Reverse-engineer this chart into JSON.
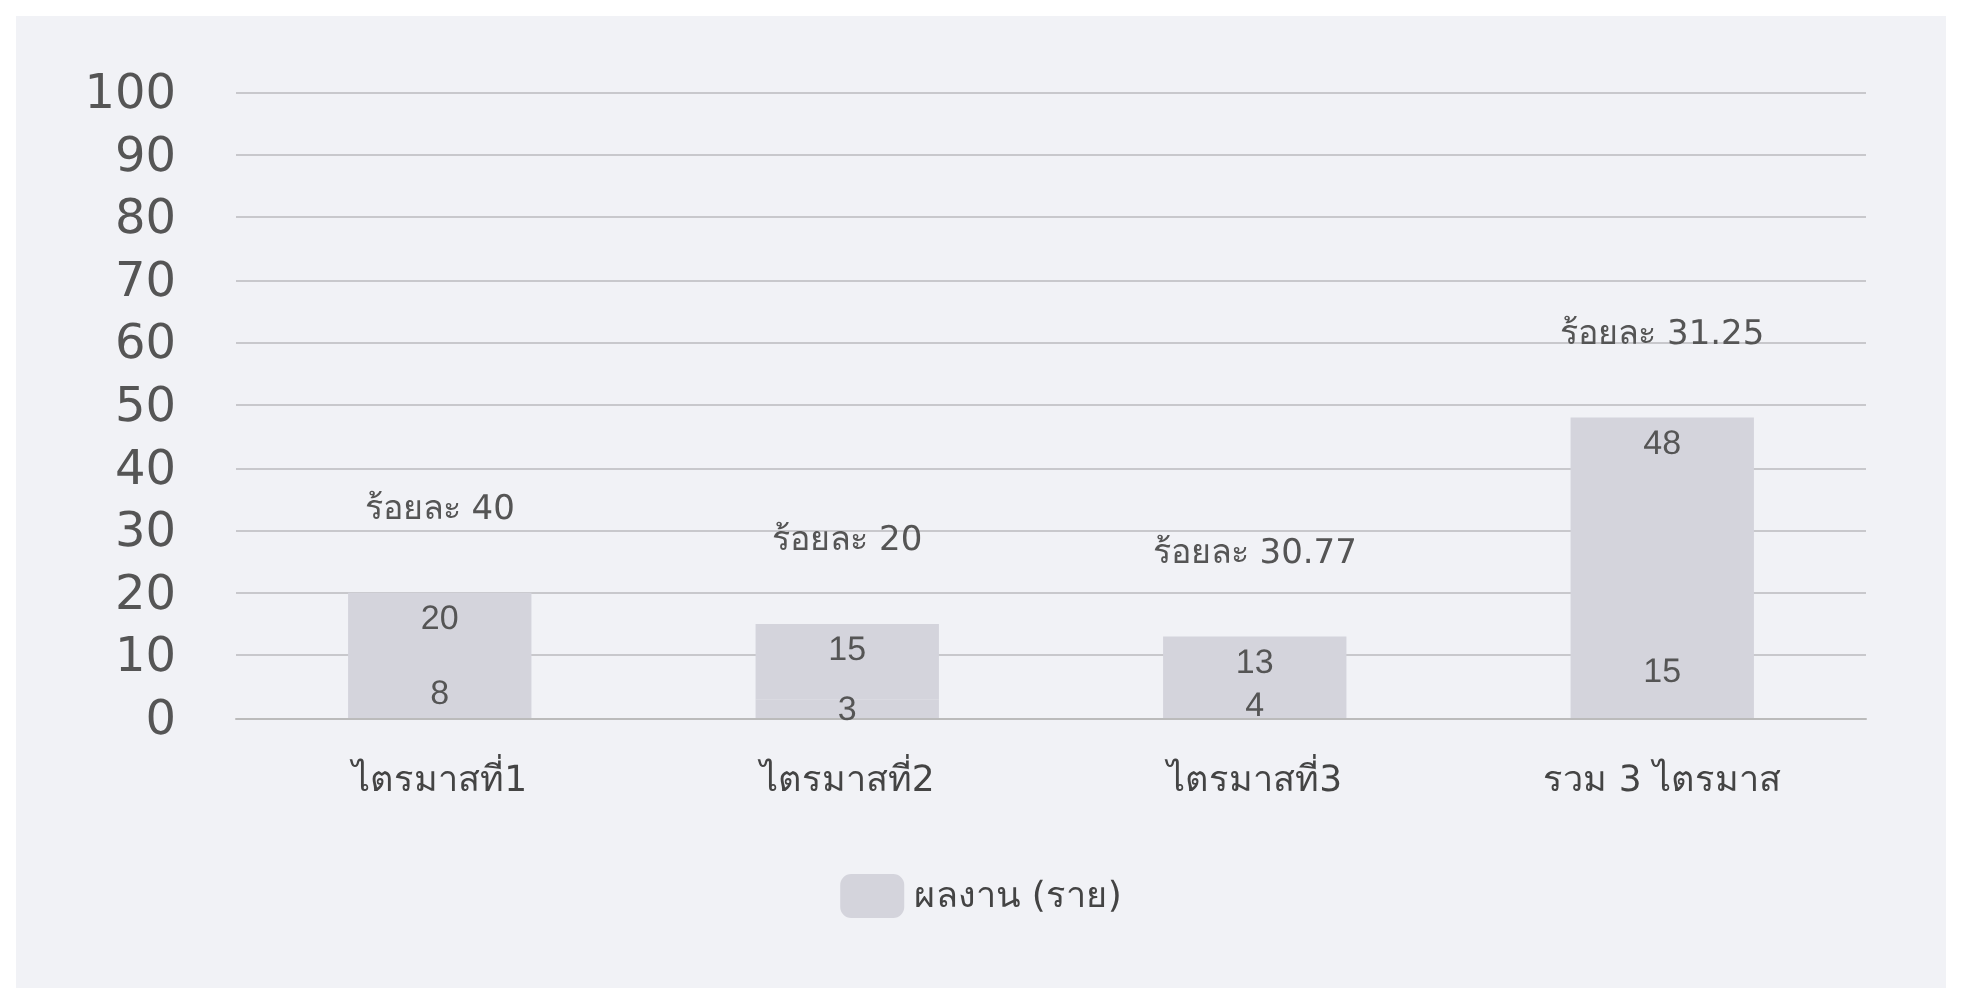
{
  "chart_data": {
    "type": "bar",
    "categories": [
      "ไตรมาสที่1",
      "ไตรมาสที่2",
      "ไตรมาสที่3",
      "รวม 3 ไตรมาส"
    ],
    "stacked": true,
    "series": [
      {
        "name": "ผลงาน (ราย)",
        "color": "#d4d4dc",
        "values": [
          8,
          3,
          4,
          15
        ],
        "value_labels": [
          "8",
          "3",
          "4",
          "15"
        ]
      },
      {
        "color": "#d4d4dc",
        "values": [
          12,
          12,
          9,
          33
        ]
      }
    ],
    "totals": [
      "20",
      "15",
      "13",
      "48"
    ],
    "annotations": [
      "ร้อยละ 40",
      "ร้อยละ 20",
      "ร้อยละ 30.77",
      "ร้อยละ 31.25"
    ],
    "ylim": [
      0,
      100
    ],
    "yticks": [
      0,
      10,
      20,
      30,
      40,
      50,
      60,
      70,
      80,
      90,
      100
    ],
    "grid": "y",
    "legend": "bottom"
  }
}
